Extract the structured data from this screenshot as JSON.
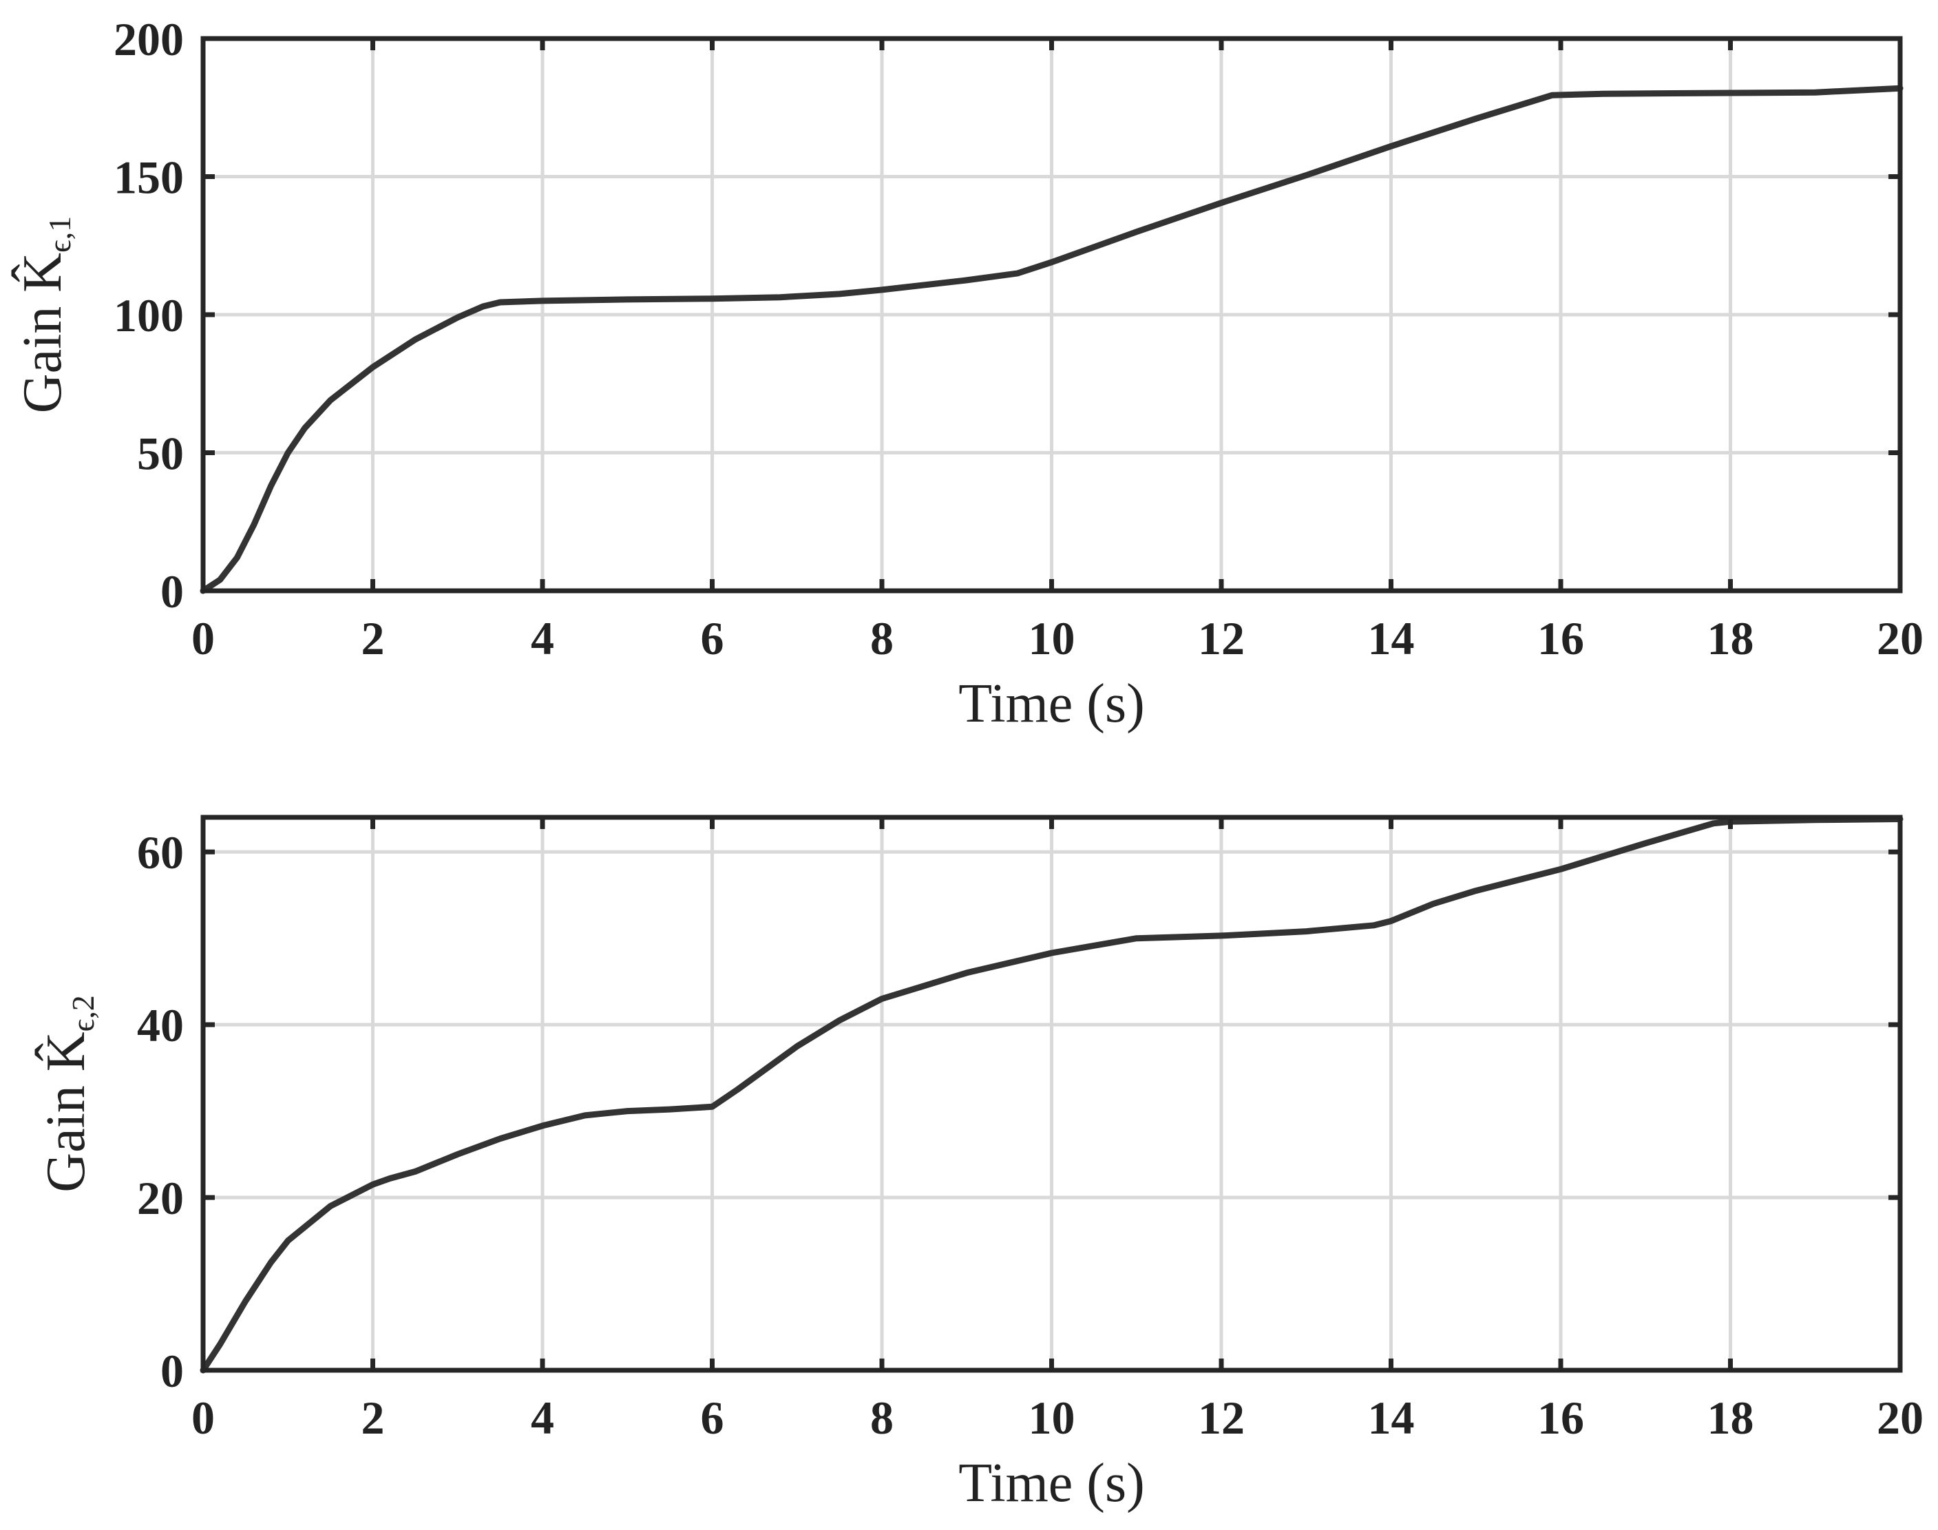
{
  "chart_data": [
    {
      "type": "line",
      "title": "",
      "xlabel": "Time (s)",
      "ylabel": "Gain K̂ϵ,1",
      "ylabel_parts": {
        "prefix": "Gain ",
        "symbol": "K̂",
        "subscript": "ϵ,1"
      },
      "xlim": [
        0,
        20
      ],
      "ylim": [
        0,
        200
      ],
      "xticks": [
        0,
        2,
        4,
        6,
        8,
        10,
        12,
        14,
        16,
        18,
        20
      ],
      "yticks": [
        0,
        50,
        100,
        150,
        200
      ],
      "xtick_labels": [
        "0",
        "2",
        "4",
        "6",
        "8",
        "10",
        "12",
        "14",
        "16",
        "18",
        "20"
      ],
      "ytick_labels": [
        "0",
        "50",
        "100",
        "150",
        "200"
      ],
      "grid": true,
      "line_color": "#333333",
      "grid_color": "#d9d9d9",
      "series": [
        {
          "x": [
            0,
            0.2,
            0.4,
            0.6,
            0.8,
            1.0,
            1.2,
            1.5,
            2.0,
            2.5,
            3.0,
            3.3,
            3.5,
            4.0,
            5.0,
            6.0,
            6.8,
            7.5,
            8.0,
            9.0,
            9.6,
            10.0,
            11.0,
            12.0,
            13.0,
            14.0,
            15.0,
            15.9,
            16.5,
            18.0,
            19.0,
            20.0
          ],
          "y": [
            0,
            4,
            12,
            24,
            38,
            50,
            59,
            69,
            81,
            91,
            99,
            103,
            104.5,
            105,
            105.5,
            105.8,
            106.3,
            107.5,
            109,
            112.5,
            115,
            119,
            130,
            140.5,
            150.5,
            161,
            171,
            179.5,
            180,
            180.3,
            180.5,
            182
          ]
        }
      ]
    },
    {
      "type": "line",
      "title": "",
      "xlabel": "Time (s)",
      "ylabel": "Gain K̂ϵ,2",
      "ylabel_parts": {
        "prefix": "Gain ",
        "symbol": "K̂",
        "subscript": "ϵ,2"
      },
      "xlim": [
        0,
        20
      ],
      "ylim": [
        0,
        64
      ],
      "xticks": [
        0,
        2,
        4,
        6,
        8,
        10,
        12,
        14,
        16,
        18,
        20
      ],
      "yticks": [
        0,
        20,
        40,
        60
      ],
      "xtick_labels": [
        "0",
        "2",
        "4",
        "6",
        "8",
        "10",
        "12",
        "14",
        "16",
        "18",
        "20"
      ],
      "ytick_labels": [
        "0",
        "20",
        "40",
        "60"
      ],
      "grid": true,
      "line_color": "#333333",
      "grid_color": "#d9d9d9",
      "series": [
        {
          "x": [
            0,
            0.2,
            0.5,
            0.8,
            1.0,
            1.5,
            2.0,
            2.2,
            2.5,
            3.0,
            3.5,
            4.0,
            4.5,
            5.0,
            5.5,
            6.0,
            6.3,
            7.0,
            7.5,
            8.0,
            8.5,
            9.0,
            10.0,
            11.0,
            12.0,
            13.0,
            13.8,
            14.0,
            14.5,
            15.0,
            16.0,
            17.0,
            17.8,
            18.0,
            19.0,
            20.0
          ],
          "y": [
            0,
            3,
            8,
            12.5,
            15,
            19,
            21.5,
            22.2,
            23,
            25,
            26.8,
            28.3,
            29.5,
            30,
            30.2,
            30.5,
            32.5,
            37.5,
            40.5,
            43,
            44.5,
            46,
            48.3,
            50,
            50.3,
            50.8,
            51.5,
            52,
            54,
            55.5,
            58,
            61,
            63.3,
            63.5,
            63.7,
            63.8
          ]
        }
      ]
    }
  ]
}
